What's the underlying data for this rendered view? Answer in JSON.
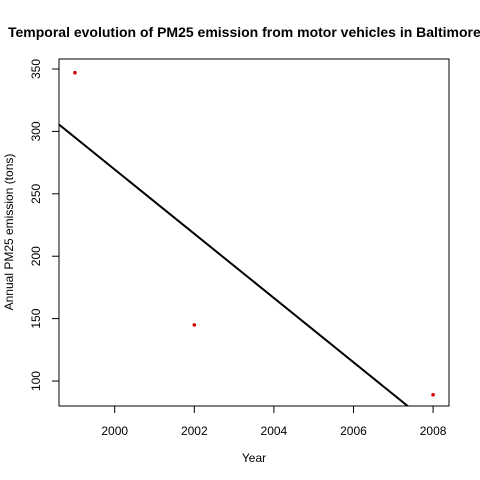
{
  "chart_data": {
    "type": "scatter",
    "title": "Temporal evolution of PM25 emission from motor vehicles in Baltimore",
    "xlabel": "Year",
    "ylabel": "Annual PM25 emission (tons)",
    "xlim": [
      1998.6,
      2008.4
    ],
    "ylim": [
      80,
      358
    ],
    "x_ticks": [
      2000,
      2002,
      2004,
      2006,
      2008
    ],
    "y_ticks": [
      100,
      150,
      200,
      250,
      300,
      350
    ],
    "grid": false,
    "legend": "none",
    "points": [
      {
        "x": 1999,
        "y": 347
      },
      {
        "x": 2002,
        "y": 145
      },
      {
        "x": 2008,
        "y": 89
      }
    ],
    "point_color": "#d40000",
    "trend_line": {
      "start": {
        "x": 1998.6,
        "y": 305.5
      },
      "end": {
        "x": 2007.4,
        "y": 79
      },
      "color": "#000000"
    }
  }
}
